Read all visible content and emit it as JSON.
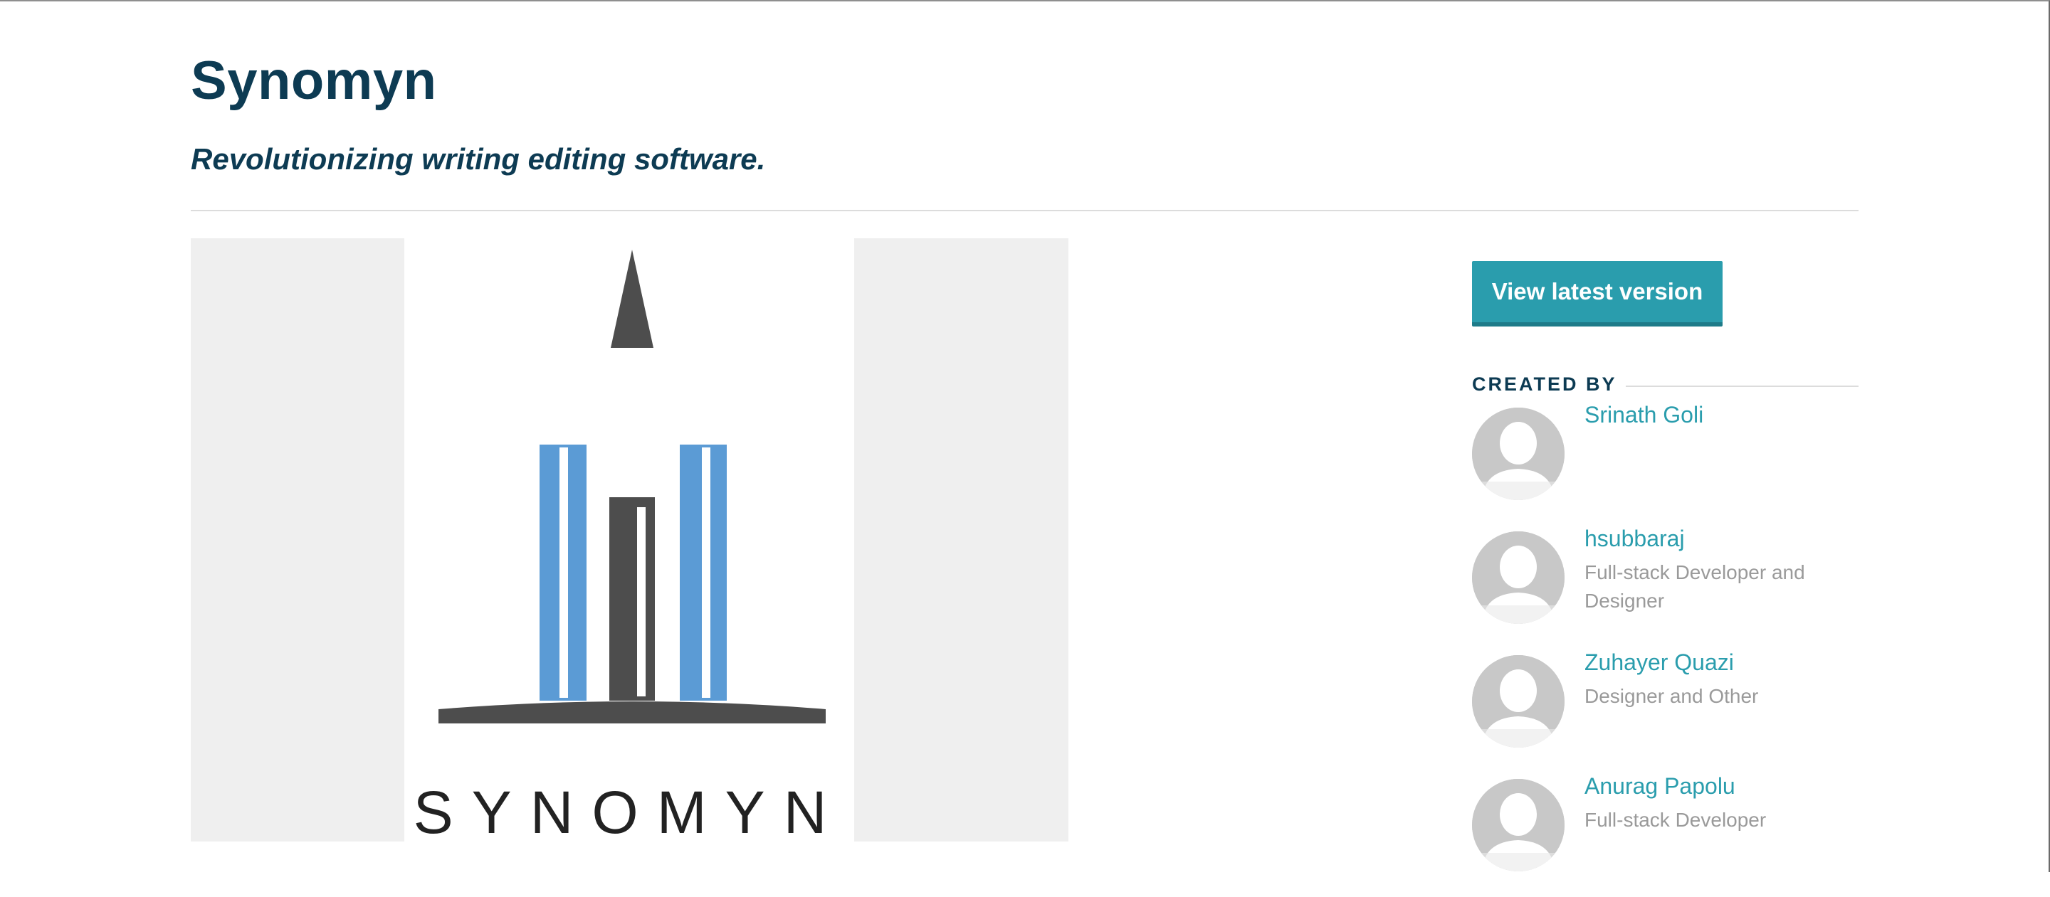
{
  "project": {
    "title": "Synomyn",
    "tagline": "Revolutionizing writing editing software."
  },
  "gallery": {
    "logo_text": "SYNOMYN"
  },
  "sidebar": {
    "view_latest_label": "View latest version",
    "created_by_label": "CREATED BY",
    "members": [
      {
        "name": "Srinath Goli",
        "role": ""
      },
      {
        "name": "hsubbaraj",
        "role": "Full-stack Developer and Designer"
      },
      {
        "name": "Zuhayer Quazi",
        "role": "Designer and Other"
      },
      {
        "name": "Anurag Papolu",
        "role": "Full-stack Developer"
      }
    ]
  },
  "colors": {
    "heading": "#0d3b53",
    "accent": "#2a9dad",
    "logo_blue": "#5b9bd5",
    "logo_gray": "#4d4d4d"
  }
}
